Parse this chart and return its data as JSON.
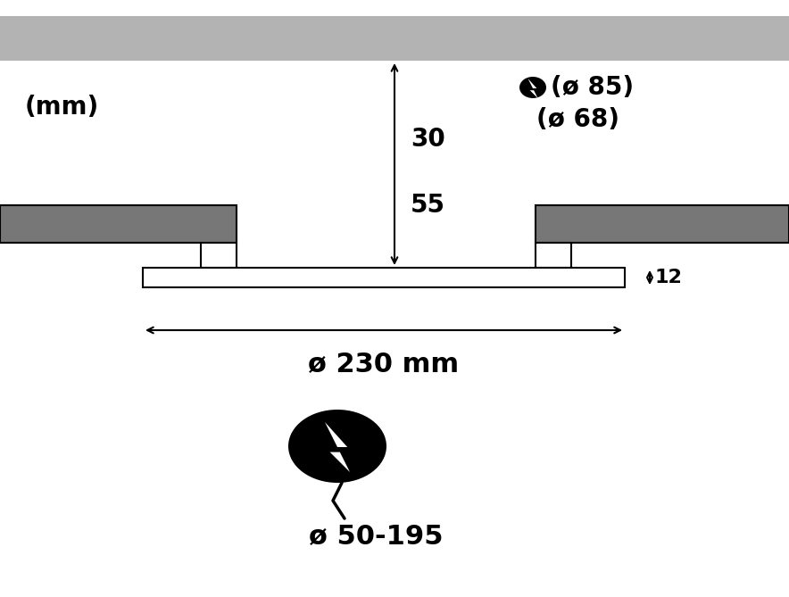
{
  "bg_color": "#ffffff",
  "ceiling_color": "#b3b3b3",
  "body_color": "#777777",
  "outline_color": "#000000",
  "mm_label": "(mm)",
  "dim_30": "30",
  "dim_55": "55",
  "dia_85": "(ø 85)",
  "dia_68": "(ø 68)",
  "dim_12": "12",
  "dia_230": "ø 230 mm",
  "dia_range": "ø 50-195",
  "font_size_large": 20,
  "font_size_medium": 16,
  "font_size_xlarge": 22
}
